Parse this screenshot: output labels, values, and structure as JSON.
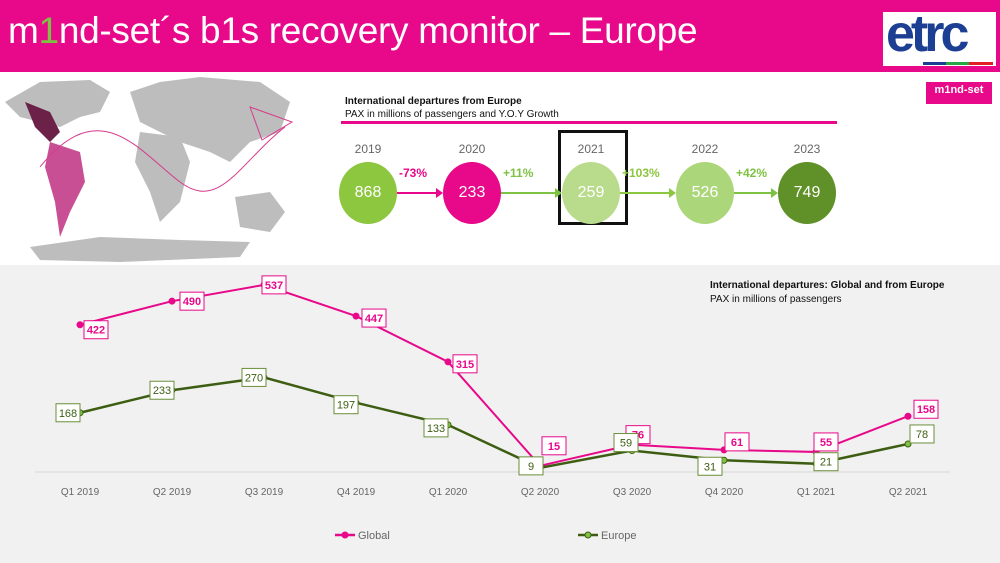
{
  "header": {
    "title_pre": "m",
    "title_one": "1",
    "title_post": "nd-set´s b1s recovery monitor – Europe",
    "logo_etrc": "etrc",
    "logo_mindset": "m1nd-set"
  },
  "top": {
    "title": "International departures from Europe",
    "subtitle": "PAX in millions of passengers and Y.O.Y Growth",
    "years": [
      {
        "year": "2019",
        "value": "868",
        "color": "#8dc63f"
      },
      {
        "year": "2020",
        "value": "233",
        "color": "#e8088a"
      },
      {
        "year": "2021",
        "value": "259",
        "color": "#b9dc8c",
        "highlighted": true
      },
      {
        "year": "2022",
        "value": "526",
        "color": "#acd67a"
      },
      {
        "year": "2023",
        "value": "749",
        "color": "#5f9128"
      }
    ],
    "growth": [
      {
        "label": "-73%",
        "color": "#e8088a"
      },
      {
        "label": "+11%",
        "color": "#7dc242"
      },
      {
        "label": "+103%",
        "color": "#8dc63f"
      },
      {
        "label": "+42%",
        "color": "#7dc242"
      }
    ]
  },
  "chart_data": {
    "type": "line",
    "title": "International departures: Global and from Europe",
    "subtitle": "PAX in millions of passengers",
    "categories": [
      "Q1 2019",
      "Q2 2019",
      "Q3 2019",
      "Q4 2019",
      "Q1 2020",
      "Q2 2020",
      "Q3 2020",
      "Q4 2020",
      "Q1 2021",
      "Q2 2021"
    ],
    "series": [
      {
        "name": "Global",
        "color": "#e8088a",
        "values": [
          422,
          490,
          537,
          447,
          315,
          15,
          76,
          61,
          55,
          158
        ]
      },
      {
        "name": "Europe",
        "color": "#3d5e12",
        "values": [
          168,
          233,
          270,
          197,
          133,
          9,
          59,
          31,
          21,
          78
        ]
      }
    ],
    "legend": "bottom",
    "grid": false
  }
}
